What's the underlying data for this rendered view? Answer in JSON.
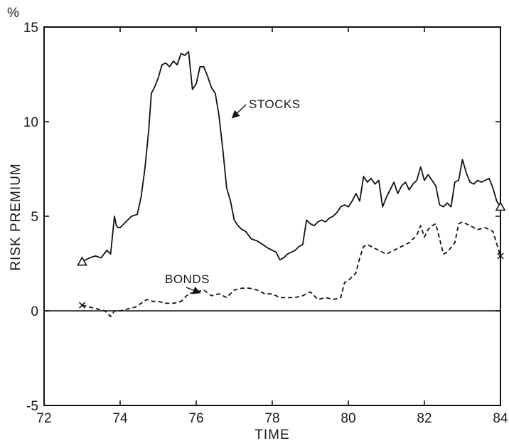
{
  "chart_data": {
    "type": "line",
    "title": "",
    "xlabel": "TIME",
    "ylabel": "RISK PREMIUM",
    "y_unit": "%",
    "xlim": [
      72,
      84
    ],
    "ylim": [
      -5,
      15
    ],
    "x_ticks": [
      72,
      74,
      76,
      78,
      80,
      82,
      84
    ],
    "y_ticks": [
      15,
      10,
      5,
      0,
      -5
    ],
    "x_tick_labels": [
      "72",
      "74",
      "76",
      "78",
      "80",
      "82",
      "84"
    ],
    "y_tick_labels": [
      "15",
      "10",
      "5",
      "0",
      "-5"
    ],
    "grid": false,
    "zero_line": true,
    "annotations": [
      {
        "text": "STOCKS",
        "series": "stocks"
      },
      {
        "text": "BONDS",
        "series": "bonds"
      }
    ],
    "series": [
      {
        "key": "stocks",
        "style": "solid",
        "marker_end": "triangle",
        "color": "#111111",
        "x": [
          73.0,
          73.2,
          73.35,
          73.5,
          73.65,
          73.75,
          73.85,
          73.9,
          73.95,
          74.0,
          74.15,
          74.3,
          74.45,
          74.55,
          74.65,
          74.75,
          74.82,
          74.9,
          75.0,
          75.1,
          75.2,
          75.3,
          75.4,
          75.5,
          75.6,
          75.7,
          75.8,
          75.9,
          76.0,
          76.1,
          76.2,
          76.3,
          76.4,
          76.5,
          76.6,
          76.7,
          76.8,
          76.9,
          77.0,
          77.1,
          77.2,
          77.3,
          77.45,
          77.6,
          77.75,
          77.9,
          78.0,
          78.1,
          78.2,
          78.3,
          78.4,
          78.5,
          78.6,
          78.7,
          78.8,
          78.9,
          79.0,
          79.1,
          79.2,
          79.3,
          79.4,
          79.5,
          79.6,
          79.7,
          79.8,
          79.9,
          80.0,
          80.1,
          80.2,
          80.3,
          80.4,
          80.5,
          80.6,
          80.7,
          80.8,
          80.9,
          81.0,
          81.1,
          81.2,
          81.3,
          81.4,
          81.5,
          81.6,
          81.7,
          81.8,
          81.9,
          82.0,
          82.1,
          82.2,
          82.3,
          82.4,
          82.5,
          82.6,
          82.7,
          82.8,
          82.9,
          83.0,
          83.1,
          83.2,
          83.3,
          83.4,
          83.5,
          83.6,
          83.7,
          83.8,
          83.9,
          84.0
        ],
        "y": [
          2.6,
          2.8,
          2.9,
          2.8,
          3.2,
          3.0,
          5.0,
          4.5,
          4.4,
          4.4,
          4.7,
          5.0,
          5.1,
          6.0,
          7.5,
          9.5,
          11.5,
          11.8,
          12.3,
          13.0,
          13.1,
          12.9,
          13.2,
          13.0,
          13.6,
          13.5,
          13.7,
          11.7,
          12.0,
          12.9,
          12.9,
          12.4,
          11.8,
          11.5,
          10.3,
          8.5,
          6.5,
          5.8,
          4.8,
          4.5,
          4.3,
          4.2,
          3.8,
          3.7,
          3.5,
          3.3,
          3.2,
          3.1,
          2.7,
          2.8,
          3.0,
          3.1,
          3.2,
          3.4,
          3.5,
          4.8,
          4.6,
          4.5,
          4.7,
          4.8,
          4.7,
          4.9,
          5.0,
          5.2,
          5.5,
          5.6,
          5.5,
          5.8,
          6.2,
          5.8,
          7.1,
          6.8,
          7.0,
          6.7,
          6.9,
          5.5,
          6.0,
          6.4,
          6.8,
          6.2,
          6.6,
          6.8,
          6.4,
          6.7,
          6.9,
          7.6,
          6.9,
          7.2,
          6.9,
          6.6,
          5.6,
          5.5,
          5.7,
          5.5,
          6.8,
          6.9,
          8.0,
          7.3,
          6.8,
          6.7,
          6.9,
          6.8,
          6.9,
          7.0,
          6.5,
          5.8,
          5.5
        ]
      },
      {
        "key": "bonds",
        "style": "dashed",
        "marker_end": "x",
        "color": "#111111",
        "x": [
          73.0,
          73.2,
          73.4,
          73.6,
          73.75,
          73.85,
          74.0,
          74.2,
          74.4,
          74.55,
          74.7,
          74.85,
          75.0,
          75.2,
          75.4,
          75.6,
          75.8,
          76.0,
          76.2,
          76.4,
          76.6,
          76.8,
          77.0,
          77.2,
          77.4,
          77.6,
          77.8,
          78.0,
          78.2,
          78.4,
          78.6,
          78.8,
          79.0,
          79.2,
          79.4,
          79.6,
          79.8,
          79.9,
          80.0,
          80.1,
          80.2,
          80.3,
          80.4,
          80.5,
          80.6,
          80.8,
          81.0,
          81.2,
          81.4,
          81.6,
          81.8,
          81.9,
          82.0,
          82.1,
          82.2,
          82.3,
          82.4,
          82.5,
          82.6,
          82.8,
          82.9,
          83.0,
          83.2,
          83.4,
          83.6,
          83.8,
          84.0
        ],
        "y": [
          0.3,
          0.2,
          0.1,
          0.0,
          -0.3,
          0.0,
          0.0,
          0.1,
          0.2,
          0.4,
          0.6,
          0.5,
          0.5,
          0.4,
          0.4,
          0.5,
          0.9,
          1.0,
          1.1,
          0.8,
          0.9,
          0.7,
          1.1,
          1.2,
          1.2,
          1.1,
          0.9,
          0.9,
          0.7,
          0.7,
          0.7,
          0.8,
          1.0,
          0.6,
          0.7,
          0.6,
          0.7,
          1.5,
          1.6,
          1.8,
          2.0,
          2.8,
          3.4,
          3.5,
          3.4,
          3.2,
          3.0,
          3.2,
          3.4,
          3.6,
          4.0,
          4.5,
          3.9,
          4.3,
          4.5,
          4.6,
          3.8,
          3.0,
          3.1,
          3.6,
          4.6,
          4.7,
          4.5,
          4.3,
          4.4,
          4.2,
          2.9
        ]
      }
    ]
  }
}
